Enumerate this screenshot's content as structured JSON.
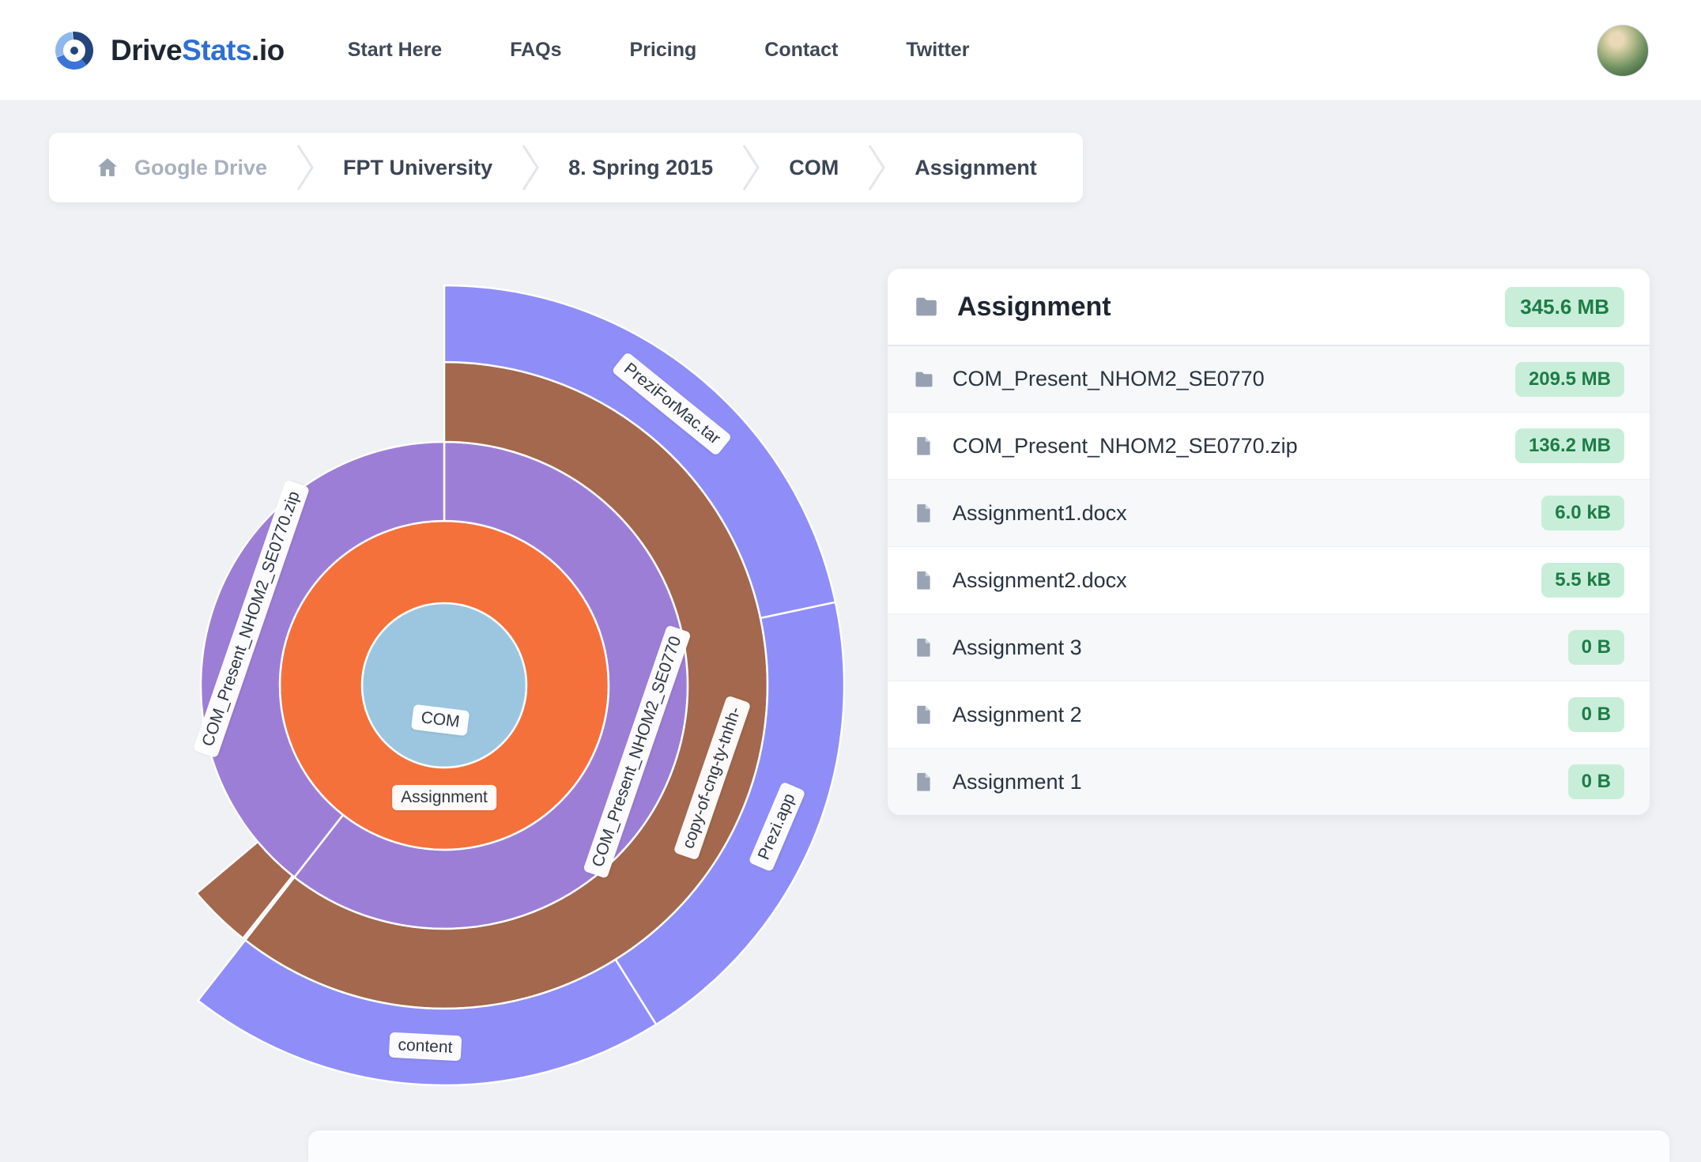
{
  "brand": {
    "prefix": "Drive",
    "accent": "Stats",
    "suffix": ".io"
  },
  "nav": {
    "items": [
      "Start Here",
      "FAQs",
      "Pricing",
      "Contact",
      "Twitter"
    ]
  },
  "breadcrumb": {
    "items": [
      {
        "label": "Google Drive"
      },
      {
        "label": "FPT University"
      },
      {
        "label": "8. Spring 2015"
      },
      {
        "label": "COM"
      },
      {
        "label": "Assignment"
      }
    ]
  },
  "file_panel": {
    "title": "Assignment",
    "total_size": "345.6 MB",
    "rows": [
      {
        "name": "COM_Present_NHOM2_SE0770",
        "size": "209.5 MB",
        "type": "folder"
      },
      {
        "name": "COM_Present_NHOM2_SE0770.zip",
        "size": "136.2 MB",
        "type": "file"
      },
      {
        "name": "Assignment1.docx",
        "size": "6.0 kB",
        "type": "file"
      },
      {
        "name": "Assignment2.docx",
        "size": "5.5 kB",
        "type": "file"
      },
      {
        "name": "Assignment 3",
        "size": "0 B",
        "type": "file"
      },
      {
        "name": "Assignment 2",
        "size": "0 B",
        "type": "file"
      },
      {
        "name": "Assignment 1",
        "size": "0 B",
        "type": "file"
      }
    ]
  },
  "chart_data": {
    "type": "sunburst",
    "angle_convention": "degrees clockwise from 12 o'clock",
    "center": {
      "label": "COM",
      "color": "#9cc6df",
      "radius": 104,
      "label_angle": 187,
      "label_radius": 44
    },
    "rings": [
      {
        "inner": 104,
        "outer": 208,
        "segments": [
          {
            "label": "Assignment",
            "start": 0,
            "end": 360,
            "color": "#f4713c",
            "label_r": 142
          }
        ]
      },
      {
        "inner": 208,
        "outer": 308,
        "segments": [
          {
            "label": "COM_Present_NHOM2_SE0770",
            "start": 0,
            "end": 218,
            "color": "#9d7ed7"
          },
          {
            "label": "COM_Present_NHOM2_SE0770.zip",
            "start": 218,
            "end": 360,
            "color": "#9d7ed7"
          }
        ]
      },
      {
        "inner": 308,
        "outer": 409,
        "segments": [
          {
            "label": "copy-of-cng-ty-tnhh-",
            "start": 0,
            "end": 218,
            "color": "#a3684e"
          },
          {
            "label": "",
            "start": 218.5,
            "end": 230,
            "color": "#a3684e"
          }
        ]
      },
      {
        "inner": 409,
        "outer": 506,
        "segments": [
          {
            "label": "PreziForMac.tar",
            "start": 0,
            "end": 78,
            "color": "#8f8ef8"
          },
          {
            "label": "Prezi.app",
            "start": 78,
            "end": 148,
            "color": "#8f8ef8"
          },
          {
            "label": "content",
            "start": 148,
            "end": 218,
            "color": "#8f8ef8"
          }
        ]
      }
    ]
  },
  "colors": {
    "accent_blue": "#2f6fd0",
    "badge_bg": "#c8eeda",
    "badge_text": "#1e7c46",
    "page_bg": "#eff1f4",
    "chart_center_blue": "#9cc6df",
    "chart_orange": "#f4713c",
    "chart_purple": "#9d7ed7",
    "chart_brown": "#a3684e",
    "chart_periwinkle": "#8f8ef8"
  }
}
